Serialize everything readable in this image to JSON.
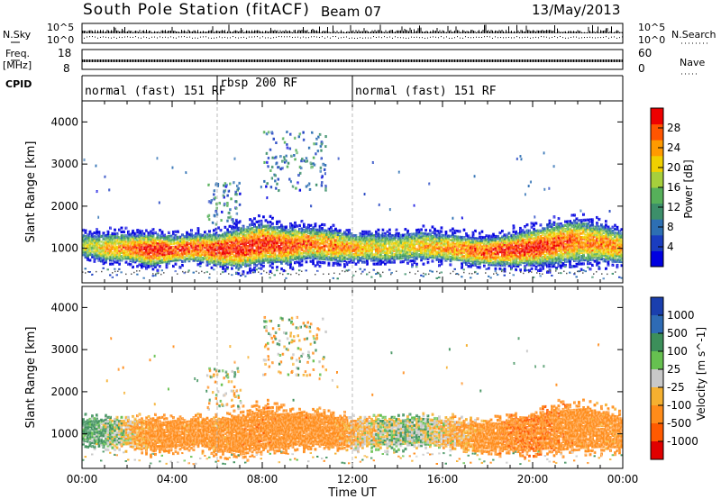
{
  "header": {
    "station": "South Pole Station (fitACF)",
    "beam": "Beam 07",
    "date": "13/May/2013"
  },
  "summary_panels": {
    "left_labels": {
      "nsky": "N.Sky",
      "freq_line1": "Freq.",
      "freq_line2": "[MHz]",
      "cpid": "CPID"
    },
    "right_labels": {
      "nsearch": "N.Search",
      "nave": "Nave"
    },
    "noise_ticks_left": [
      "10^5",
      "10^0"
    ],
    "noise_ticks_right": [
      "10^5",
      "10^0"
    ],
    "freq_ticks": [
      "18",
      "8"
    ],
    "nave_ticks": [
      "60",
      "0"
    ],
    "cpid_segments": [
      {
        "label": "normal (fast) 151 RF",
        "start_hour": 0,
        "end_hour": 6
      },
      {
        "label": "rbsp 200 RF",
        "start_hour": 6,
        "end_hour": 12
      },
      {
        "label": "normal (fast) 151 RF",
        "start_hour": 12,
        "end_hour": 24
      }
    ]
  },
  "chart_data": [
    {
      "type": "heatmap",
      "parameter": "Power",
      "ylabel": "Slant Range [km]",
      "xlim_hours": [
        0,
        24
      ],
      "ylim": [
        180,
        4500
      ],
      "yticks": [
        1000,
        2000,
        3000,
        4000
      ],
      "colorbar": {
        "label": "Power [dB]",
        "ticks": [
          4,
          8,
          12,
          16,
          20,
          24,
          28
        ],
        "range": [
          0,
          32
        ]
      },
      "echo_band": {
        "hours": [
          0,
          1,
          2,
          3,
          4,
          5,
          6,
          7,
          8,
          9,
          10,
          11,
          12,
          13,
          14,
          15,
          16,
          17,
          18,
          19,
          20,
          21,
          22,
          23,
          24
        ],
        "center_km": [
          1100,
          1050,
          1050,
          1000,
          1000,
          1050,
          1000,
          1050,
          1150,
          1100,
          1150,
          1100,
          1050,
          1050,
          1050,
          1100,
          1050,
          1000,
          950,
          1000,
          1050,
          1150,
          1200,
          1150,
          1050
        ],
        "halfwidth_km": [
          250,
          300,
          300,
          350,
          300,
          300,
          350,
          450,
          450,
          400,
          350,
          350,
          300,
          300,
          300,
          300,
          300,
          300,
          300,
          350,
          400,
          450,
          450,
          400,
          350
        ],
        "peak_db": [
          18,
          22,
          26,
          30,
          28,
          28,
          30,
          30,
          30,
          28,
          26,
          26,
          24,
          22,
          20,
          22,
          24,
          26,
          28,
          30,
          30,
          28,
          26,
          26,
          24
        ]
      },
      "upper_echoes": [
        {
          "hour_start": 5.5,
          "hour_end": 7.0,
          "km_low": 1600,
          "km_high": 2600
        },
        {
          "hour_start": 8.0,
          "hour_end": 10.8,
          "km_low": 2400,
          "km_high": 3800
        }
      ]
    },
    {
      "type": "heatmap",
      "parameter": "Velocity",
      "ylabel": "Slant Range [km]",
      "xlabel": "Time UT",
      "xlim_hours": [
        0,
        24
      ],
      "xticks": [
        "00:00",
        "04:00",
        "08:00",
        "12:00",
        "16:00",
        "20:00",
        "00:00"
      ],
      "ylim": [
        180,
        4500
      ],
      "yticks": [
        1000,
        2000,
        3000,
        4000
      ],
      "colorbar": {
        "label": "Velocity [m s^-1]",
        "ticks": [
          1000,
          500,
          100,
          25,
          -25,
          -100,
          -500,
          -1000
        ]
      },
      "velocity_by_hour_ms": [
        120,
        60,
        -40,
        -200,
        -300,
        -250,
        -220,
        -300,
        -350,
        -280,
        -320,
        -250,
        -80,
        -20,
        40,
        30,
        -60,
        -120,
        -250,
        -400,
        -450,
        -380,
        -300,
        -250,
        -200
      ]
    }
  ]
}
